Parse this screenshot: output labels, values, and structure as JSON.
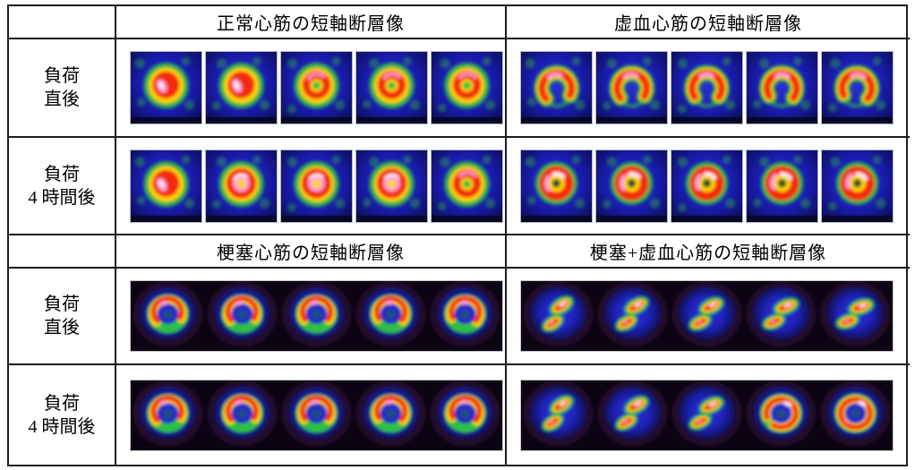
{
  "figure": {
    "type": "myocardial-perfusion-spect-table",
    "columns_header_row_1": {
      "normal": "正常心筋の短軸断層像",
      "ischemia": "虚血心筋の短軸断層像"
    },
    "columns_header_row_2": {
      "infarct": "梗塞心筋の短軸断層像",
      "infarct_ischemia": "梗塞+虚血心筋の短軸断層像"
    },
    "row_labels": {
      "immediate": {
        "line1": "負荷",
        "line2": "直後"
      },
      "four_hours": {
        "line1": "負荷",
        "line2": "4 時間後"
      }
    }
  },
  "palette": {
    "frame_bg_center": "#2b2fd4",
    "frame_bg_mid": "#1b1db6",
    "frame_bg_edge": "#0a0c3f",
    "strip_bg_black": "#0d0413",
    "disc_purple_halo": "#24092f",
    "halo_green": "#2ebf45",
    "hot_yellow": "#ffd400",
    "hot_red": "#f32b0a",
    "hot_pink": "#ff9fd0",
    "hot_white": "#ffe9f5",
    "hole_dark_green": "#14452b",
    "table_line": "#1c1c1c"
  },
  "scan_strips": {
    "normal_immediate": {
      "style": "framed",
      "frames": [
        "solid",
        "solid",
        "donut-green",
        "donut-green",
        "donut-green"
      ]
    },
    "normal_4h": {
      "style": "framed",
      "frames": [
        "solid",
        "donut-pink",
        "donut-pink",
        "donut-pink",
        "donut-green"
      ]
    },
    "ischemia_immediate": {
      "style": "framed",
      "frames": [
        "arch",
        "arch",
        "arch",
        "arch",
        "arch"
      ]
    },
    "ischemia_4h": {
      "style": "framed",
      "frames": [
        "donut-redis",
        "donut-redis",
        "donut-redis",
        "donut-redis",
        "donut-redis"
      ]
    },
    "infarct_immediate": {
      "style": "continuous",
      "frames": [
        "arch-green-base",
        "arch-green-base",
        "arch-green-base",
        "arch-green-base",
        "arch-green-base"
      ]
    },
    "infarct_4h": {
      "style": "continuous",
      "frames": [
        "arch-green-base",
        "arch-green-base",
        "arch-green-base",
        "arch-green-base",
        "arch-green-base"
      ]
    },
    "infarct_ischemia_immediate": {
      "style": "continuous",
      "frames": [
        "two-blob",
        "two-blob",
        "two-blob",
        "two-blob",
        "two-blob"
      ]
    },
    "infarct_ischemia_4h": {
      "style": "continuous",
      "frames": [
        "two-blob",
        "two-blob",
        "two-blob",
        "ring-gap",
        "donut-disc"
      ]
    }
  }
}
